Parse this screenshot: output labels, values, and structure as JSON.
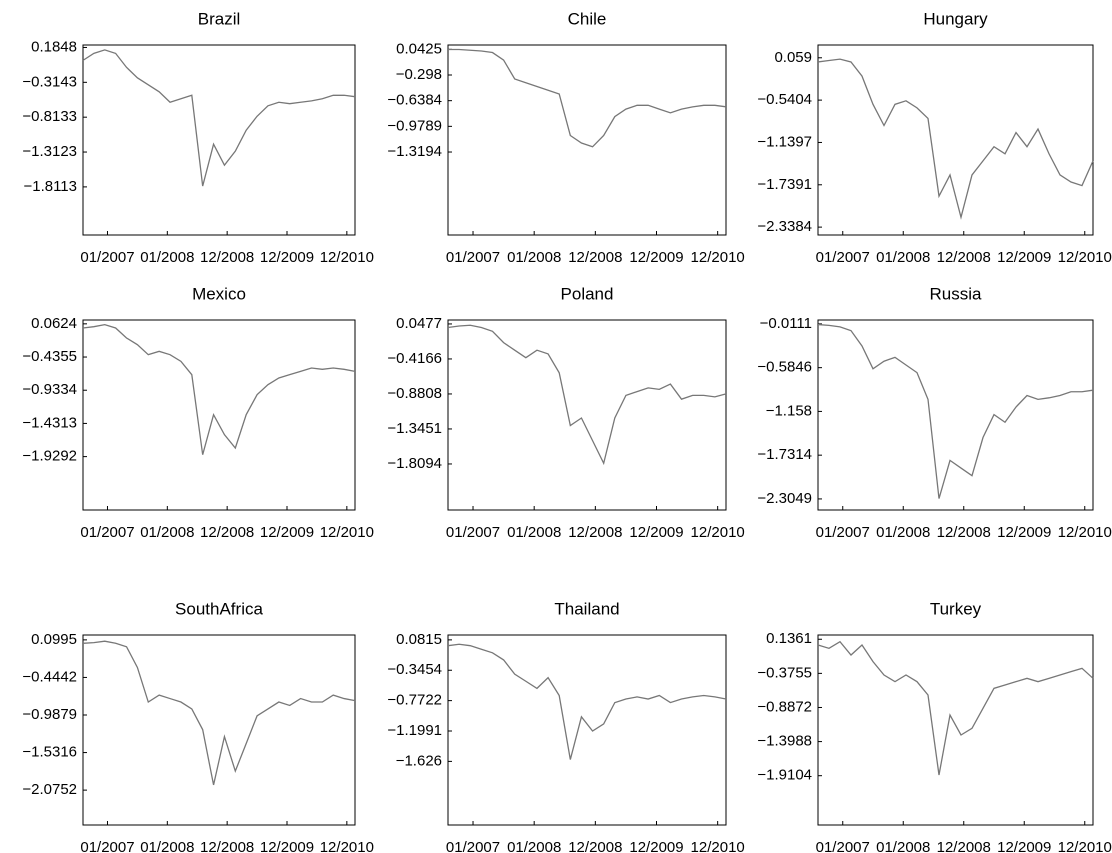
{
  "chart_data": [
    {
      "type": "line",
      "title": "Brazil",
      "x": [
        0,
        4,
        8,
        12,
        16,
        20,
        24,
        28,
        32,
        36,
        40,
        44,
        48,
        52,
        56,
        60,
        64,
        68,
        72,
        76,
        80,
        84,
        88,
        92,
        96,
        100
      ],
      "xlim": [
        0,
        100
      ],
      "xticks": [
        {
          "value": 9,
          "label": "01/2007"
        },
        {
          "value": 31,
          "label": "01/2008"
        },
        {
          "value": 53,
          "label": "12/2008"
        },
        {
          "value": 75,
          "label": "12/2009"
        },
        {
          "value": 97,
          "label": "12/2010"
        }
      ],
      "ylim": [
        -2.5,
        0.22
      ],
      "yticks": [
        0.1848,
        {
          "value": -0.3143,
          "label": "−0.3143"
        },
        {
          "value": -0.8133,
          "label": "−0.8133"
        },
        {
          "value": -1.3123,
          "label": "−1.3123"
        },
        {
          "value": -1.8113,
          "label": "−1.8113"
        }
      ],
      "series": [
        {
          "color": "#777777",
          "values": [
            0.0,
            0.1,
            0.15,
            0.1,
            -0.1,
            -0.25,
            -0.35,
            -0.45,
            -0.6,
            -0.55,
            -0.5,
            -1.8,
            -1.2,
            -1.5,
            -1.3,
            -1.0,
            -0.8,
            -0.65,
            -0.6,
            -0.62,
            -0.6,
            -0.58,
            -0.55,
            -0.5,
            -0.5,
            -0.52
          ]
        }
      ]
    },
    {
      "type": "line",
      "title": "Chile",
      "x": [
        0,
        4,
        8,
        12,
        16,
        20,
        24,
        28,
        32,
        36,
        40,
        44,
        48,
        52,
        56,
        60,
        64,
        68,
        72,
        76,
        80,
        84,
        88,
        92,
        96,
        100
      ],
      "xlim": [
        0,
        100
      ],
      "xticks": [
        {
          "value": 9,
          "label": "01/2007"
        },
        {
          "value": 31,
          "label": "01/2008"
        },
        {
          "value": 53,
          "label": "12/2008"
        },
        {
          "value": 75,
          "label": "12/2009"
        },
        {
          "value": 97,
          "label": "12/2010"
        }
      ],
      "ylim": [
        -2.42,
        0.1
      ],
      "yticks": [
        0.0425,
        {
          "value": -0.298,
          "label": "−0.298"
        },
        {
          "value": -0.6384,
          "label": "−0.6384"
        },
        {
          "value": -0.9789,
          "label": "−0.9789"
        },
        {
          "value": -1.3194,
          "label": "−1.3194"
        }
      ],
      "series": [
        {
          "color": "#777777",
          "values": [
            0.04,
            0.04,
            0.03,
            0.02,
            0.0,
            -0.1,
            -0.35,
            -0.4,
            -0.45,
            -0.5,
            -0.55,
            -1.1,
            -1.2,
            -1.25,
            -1.1,
            -0.85,
            -0.75,
            -0.7,
            -0.7,
            -0.75,
            -0.8,
            -0.75,
            -0.72,
            -0.7,
            -0.7,
            -0.72
          ]
        }
      ]
    },
    {
      "type": "line",
      "title": "Hungary",
      "x": [
        0,
        4,
        8,
        12,
        16,
        20,
        24,
        28,
        32,
        36,
        40,
        44,
        48,
        52,
        56,
        60,
        64,
        68,
        72,
        76,
        80,
        84,
        88,
        92,
        96,
        100
      ],
      "xlim": [
        0,
        100
      ],
      "xticks": [
        {
          "value": 9,
          "label": "01/2007"
        },
        {
          "value": 31,
          "label": "01/2008"
        },
        {
          "value": 53,
          "label": "12/2008"
        },
        {
          "value": 75,
          "label": "12/2009"
        },
        {
          "value": 97,
          "label": "12/2010"
        }
      ],
      "ylim": [
        -2.45,
        0.24
      ],
      "yticks": [
        0.059,
        {
          "value": -0.5404,
          "label": "−0.5404"
        },
        {
          "value": -1.1397,
          "label": "−1.1397"
        },
        {
          "value": -1.7391,
          "label": "−1.7391"
        },
        {
          "value": -2.3384,
          "label": "−2.3384"
        }
      ],
      "series": [
        {
          "color": "#777777",
          "values": [
            0.0,
            0.02,
            0.04,
            0.0,
            -0.2,
            -0.6,
            -0.9,
            -0.6,
            -0.55,
            -0.65,
            -0.8,
            -1.9,
            -1.6,
            -2.2,
            -1.6,
            -1.4,
            -1.2,
            -1.3,
            -1.0,
            -1.2,
            -0.95,
            -1.3,
            -1.6,
            -1.7,
            -1.75,
            -1.4
          ]
        }
      ]
    },
    {
      "type": "line",
      "title": "Mexico",
      "x": [
        0,
        4,
        8,
        12,
        16,
        20,
        24,
        28,
        32,
        36,
        40,
        44,
        48,
        52,
        56,
        60,
        64,
        68,
        72,
        76,
        80,
        84,
        88,
        92,
        96,
        100
      ],
      "xlim": [
        0,
        100
      ],
      "xticks": [
        {
          "value": 9,
          "label": "01/2007"
        },
        {
          "value": 31,
          "label": "01/2008"
        },
        {
          "value": 53,
          "label": "12/2008"
        },
        {
          "value": 75,
          "label": "12/2009"
        },
        {
          "value": 97,
          "label": "12/2010"
        }
      ],
      "ylim": [
        -2.73,
        0.12
      ],
      "yticks": [
        0.0624,
        {
          "value": -0.4355,
          "label": "−0.4355"
        },
        {
          "value": -0.9334,
          "label": "−0.9334"
        },
        {
          "value": -1.4313,
          "label": "−1.4313"
        },
        {
          "value": -1.9292,
          "label": "−1.9292"
        }
      ],
      "series": [
        {
          "color": "#777777",
          "values": [
            0.0,
            0.02,
            0.05,
            0.0,
            -0.15,
            -0.25,
            -0.4,
            -0.35,
            -0.4,
            -0.5,
            -0.7,
            -1.9,
            -1.3,
            -1.6,
            -1.8,
            -1.3,
            -1.0,
            -0.85,
            -0.75,
            -0.7,
            -0.65,
            -0.6,
            -0.62,
            -0.6,
            -0.62,
            -0.65
          ]
        }
      ]
    },
    {
      "type": "line",
      "title": "Poland",
      "x": [
        0,
        4,
        8,
        12,
        16,
        20,
        24,
        28,
        32,
        36,
        40,
        44,
        48,
        52,
        56,
        60,
        64,
        68,
        72,
        76,
        80,
        84,
        88,
        92,
        96,
        100
      ],
      "xlim": [
        0,
        100
      ],
      "xticks": [
        {
          "value": 9,
          "label": "01/2007"
        },
        {
          "value": 31,
          "label": "01/2008"
        },
        {
          "value": 53,
          "label": "12/2008"
        },
        {
          "value": 75,
          "label": "12/2009"
        },
        {
          "value": 97,
          "label": "12/2010"
        }
      ],
      "ylim": [
        -2.42,
        0.1
      ],
      "yticks": [
        0.0477,
        {
          "value": -0.4166,
          "label": "−0.4166"
        },
        {
          "value": -0.8808,
          "label": "−0.8808"
        },
        {
          "value": -1.3451,
          "label": "−1.3451"
        },
        {
          "value": -1.8094,
          "label": "−1.8094"
        }
      ],
      "series": [
        {
          "color": "#777777",
          "values": [
            0.0,
            0.02,
            0.03,
            0.0,
            -0.05,
            -0.2,
            -0.3,
            -0.4,
            -0.3,
            -0.35,
            -0.6,
            -1.3,
            -1.2,
            -1.5,
            -1.8,
            -1.2,
            -0.9,
            -0.85,
            -0.8,
            -0.82,
            -0.75,
            -0.95,
            -0.9,
            -0.9,
            -0.92,
            -0.88
          ]
        }
      ]
    },
    {
      "type": "line",
      "title": "Russia",
      "x": [
        0,
        4,
        8,
        12,
        16,
        20,
        24,
        28,
        32,
        36,
        40,
        44,
        48,
        52,
        56,
        60,
        64,
        68,
        72,
        76,
        80,
        84,
        88,
        92,
        96,
        100
      ],
      "xlim": [
        0,
        100
      ],
      "xticks": [
        {
          "value": 9,
          "label": "01/2007"
        },
        {
          "value": 31,
          "label": "01/2008"
        },
        {
          "value": 53,
          "label": "12/2008"
        },
        {
          "value": 75,
          "label": "12/2009"
        },
        {
          "value": 97,
          "label": "12/2010"
        }
      ],
      "ylim": [
        -2.45,
        0.04
      ],
      "yticks": [
        {
          "value": -0.0111,
          "label": "−0.0111"
        },
        {
          "value": -0.5846,
          "label": "−0.5846"
        },
        {
          "value": -1.158,
          "label": "−1.158"
        },
        {
          "value": -1.7314,
          "label": "−1.7314"
        },
        {
          "value": -2.3049,
          "label": "−2.3049"
        }
      ],
      "series": [
        {
          "color": "#777777",
          "values": [
            -0.02,
            -0.03,
            -0.05,
            -0.1,
            -0.3,
            -0.6,
            -0.5,
            -0.45,
            -0.55,
            -0.65,
            -1.0,
            -2.3,
            -1.8,
            -1.9,
            -2.0,
            -1.5,
            -1.2,
            -1.3,
            -1.1,
            -0.95,
            -1.0,
            -0.98,
            -0.95,
            -0.9,
            -0.9,
            -0.88
          ]
        }
      ]
    },
    {
      "type": "line",
      "title": "SouthAfrica",
      "x": [
        0,
        4,
        8,
        12,
        16,
        20,
        24,
        28,
        32,
        36,
        40,
        44,
        48,
        52,
        56,
        60,
        64,
        68,
        72,
        76,
        80,
        84,
        88,
        92,
        96,
        100
      ],
      "xlim": [
        0,
        100
      ],
      "xticks": [
        {
          "value": 9,
          "label": "01/2007"
        },
        {
          "value": 31,
          "label": "01/2008"
        },
        {
          "value": 53,
          "label": "12/2008"
        },
        {
          "value": 75,
          "label": "12/2009"
        },
        {
          "value": 97,
          "label": "12/2010"
        }
      ],
      "ylim": [
        -2.58,
        0.17
      ],
      "yticks": [
        0.0995,
        {
          "value": -0.4442,
          "label": "−0.4442"
        },
        {
          "value": -0.9879,
          "label": "−0.9879"
        },
        {
          "value": -1.5316,
          "label": "−1.5316"
        },
        {
          "value": -2.0752,
          "label": "−2.0752"
        }
      ],
      "series": [
        {
          "color": "#777777",
          "values": [
            0.05,
            0.06,
            0.08,
            0.05,
            0.0,
            -0.3,
            -0.8,
            -0.7,
            -0.75,
            -0.8,
            -0.9,
            -1.2,
            -2.0,
            -1.3,
            -1.8,
            -1.4,
            -1.0,
            -0.9,
            -0.8,
            -0.85,
            -0.75,
            -0.8,
            -0.8,
            -0.7,
            -0.75,
            -0.78
          ]
        }
      ]
    },
    {
      "type": "line",
      "title": "Thailand",
      "x": [
        0,
        4,
        8,
        12,
        16,
        20,
        24,
        28,
        32,
        36,
        40,
        44,
        48,
        52,
        56,
        60,
        64,
        68,
        72,
        76,
        80,
        84,
        88,
        92,
        96,
        100
      ],
      "xlim": [
        0,
        100
      ],
      "xticks": [
        {
          "value": 9,
          "label": "01/2007"
        },
        {
          "value": 31,
          "label": "01/2008"
        },
        {
          "value": 53,
          "label": "12/2008"
        },
        {
          "value": 75,
          "label": "12/2009"
        },
        {
          "value": 97,
          "label": "12/2010"
        }
      ],
      "ylim": [
        -2.52,
        0.15
      ],
      "yticks": [
        0.0815,
        {
          "value": -0.3454,
          "label": "−0.3454"
        },
        {
          "value": -0.7722,
          "label": "−0.7722"
        },
        {
          "value": -1.1991,
          "label": "−1.1991"
        },
        {
          "value": -1.626,
          "label": "−1.626"
        }
      ],
      "series": [
        {
          "color": "#777777",
          "values": [
            0.0,
            0.02,
            0.0,
            -0.05,
            -0.1,
            -0.2,
            -0.4,
            -0.5,
            -0.6,
            -0.45,
            -0.7,
            -1.6,
            -1.0,
            -1.2,
            -1.1,
            -0.8,
            -0.75,
            -0.72,
            -0.75,
            -0.7,
            -0.8,
            -0.75,
            -0.72,
            -0.7,
            -0.72,
            -0.75
          ]
        }
      ]
    },
    {
      "type": "line",
      "title": "Turkey",
      "x": [
        0,
        4,
        8,
        12,
        16,
        20,
        24,
        28,
        32,
        36,
        40,
        44,
        48,
        52,
        56,
        60,
        64,
        68,
        72,
        76,
        80,
        84,
        88,
        92,
        96,
        100
      ],
      "xlim": [
        0,
        100
      ],
      "xticks": [
        {
          "value": 9,
          "label": "01/2007"
        },
        {
          "value": 31,
          "label": "01/2008"
        },
        {
          "value": 53,
          "label": "12/2008"
        },
        {
          "value": 75,
          "label": "12/2009"
        },
        {
          "value": 97,
          "label": "12/2010"
        }
      ],
      "ylim": [
        -2.65,
        0.2
      ],
      "yticks": [
        0.1361,
        {
          "value": -0.3755,
          "label": "−0.3755"
        },
        {
          "value": -0.8872,
          "label": "−0.8872"
        },
        {
          "value": -1.3988,
          "label": "−1.3988"
        },
        {
          "value": -1.9104,
          "label": "−1.9104"
        }
      ],
      "series": [
        {
          "color": "#777777",
          "values": [
            0.05,
            0.0,
            0.1,
            -0.1,
            0.05,
            -0.2,
            -0.4,
            -0.5,
            -0.4,
            -0.5,
            -0.7,
            -1.9,
            -1.0,
            -1.3,
            -1.2,
            -0.9,
            -0.6,
            -0.55,
            -0.5,
            -0.45,
            -0.5,
            -0.45,
            -0.4,
            -0.35,
            -0.3,
            -0.45
          ]
        }
      ]
    }
  ]
}
